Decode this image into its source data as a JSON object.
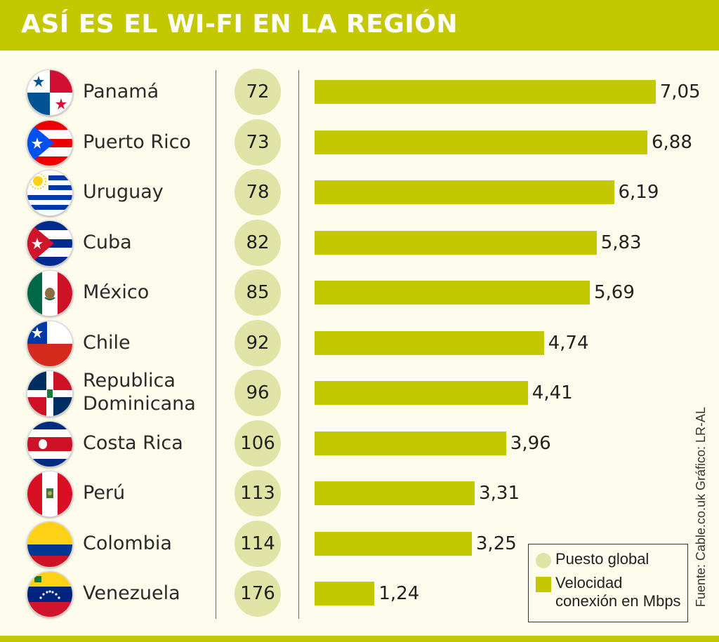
{
  "title": "ASÍ ES EL WI-FI EN LA REGIÓN",
  "legend": {
    "rank_label": "Puesto global",
    "speed_label": "Velocidad conexión en Mbps"
  },
  "credit": "Fuente: Cable.co.uk   Gráfico: LR-AL",
  "chart_data": {
    "type": "bar",
    "orientation": "horizontal",
    "title": "ASÍ ES EL WI-FI EN LA REGIÓN",
    "categories": [
      "Panamá",
      "Puerto Rico",
      "Uruguay",
      "Cuba",
      "México",
      "Chile",
      "Republica Dominicana",
      "Costa Rica",
      "Perú",
      "Colombia",
      "Venezuela"
    ],
    "series": [
      {
        "name": "Velocidad conexión en Mbps",
        "values": [
          7.05,
          6.88,
          6.19,
          5.83,
          5.69,
          4.74,
          4.41,
          3.96,
          3.31,
          3.25,
          1.24
        ]
      },
      {
        "name": "Puesto global",
        "values": [
          72,
          73,
          78,
          82,
          85,
          92,
          96,
          106,
          113,
          114,
          176
        ]
      }
    ],
    "value_labels": [
      "7,05",
      "6,88",
      "6,19",
      "5,83",
      "5,69",
      "4,74",
      "4,41",
      "3,96",
      "3,31",
      "3,25",
      "1,24"
    ],
    "rank_labels": [
      "72",
      "73",
      "78",
      "82",
      "85",
      "92",
      "96",
      "106",
      "113",
      "114",
      "176"
    ],
    "flags": [
      "panama-flag-icon",
      "puerto-rico-flag-icon",
      "uruguay-flag-icon",
      "cuba-flag-icon",
      "mexico-flag-icon",
      "chile-flag-icon",
      "dominican-republic-flag-icon",
      "costa-rica-flag-icon",
      "peru-flag-icon",
      "colombia-flag-icon",
      "venezuela-flag-icon"
    ],
    "colors": {
      "bar": "#c4c800",
      "rank_circle": "#dfe4a6",
      "header": "#c4c800",
      "background": "#fdfbec"
    },
    "legend_position": "bottom-right",
    "grid": false
  }
}
